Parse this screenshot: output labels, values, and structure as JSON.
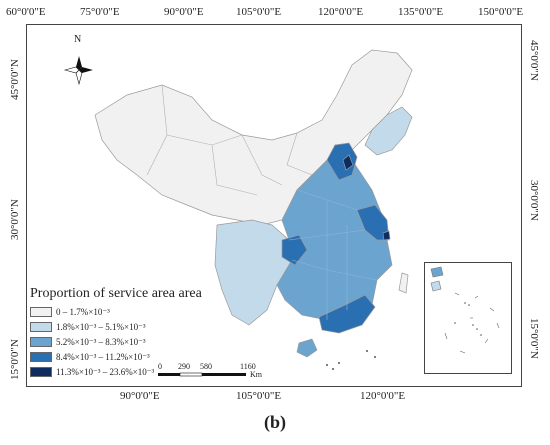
{
  "map": {
    "top_axis_labels": [
      "60°0'0\"E",
      "75°0'0\"E",
      "90°0'0\"E",
      "105°0'0\"E",
      "120°0'0\"E",
      "135°0'0\"E",
      "150°0'0\"E"
    ],
    "bottom_axis_labels": [
      "90°0'0\"E",
      "105°0'0\"E",
      "120°0'0\"E"
    ],
    "left_axis_labels": [
      "45°0'0\"N",
      "30°0'0\"N",
      "15°0'0\"N"
    ],
    "right_axis_labels": [
      "45°0'0\"N",
      "30°0'0\"N",
      "15°0'0\"N"
    ],
    "north_label": "N",
    "legend": {
      "title": "Proportion of service area area",
      "items": [
        {
          "label": "0 – 1.7%×10⁻³",
          "color": "#f1f1f1"
        },
        {
          "label": "1.8%×10⁻³ – 5.1%×10⁻³",
          "color": "#c3daea"
        },
        {
          "label": "5.2%×10⁻³ – 8.3%×10⁻³",
          "color": "#6aa4cf"
        },
        {
          "label": "8.4%×10⁻³ – 11.2%×10⁻³",
          "color": "#2b6fb3"
        },
        {
          "label": "11.3%×10⁻³ – 23.6%×10⁻³",
          "color": "#0d2d5e"
        }
      ]
    },
    "scale_bar": {
      "ticks": [
        "0",
        "290",
        "580",
        "1160"
      ],
      "unit": "Km"
    },
    "panel_label": "(b)"
  }
}
